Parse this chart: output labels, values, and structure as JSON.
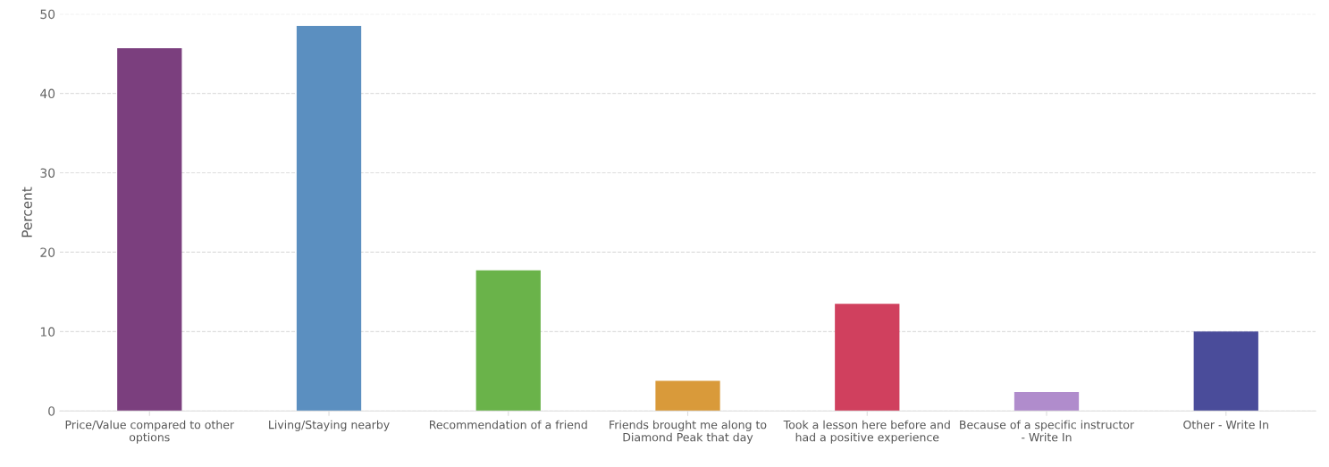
{
  "chart_data": {
    "type": "bar",
    "ylabel": "Percent",
    "categories": [
      "Price/Value compared to other\noptions",
      "Living/Staying nearby",
      "Recommendation of a friend",
      "Friends brought me along to\nDiamond Peak that day",
      "Took a lesson here before and\nhad a positive experience",
      "Because of a specific instructor\n- Write In",
      "Other - Write In"
    ],
    "values": [
      45.7,
      48.5,
      17.7,
      3.8,
      13.5,
      2.4,
      10.0
    ],
    "colors": [
      "#7b3f7e",
      "#5b8fc0",
      "#6ab34a",
      "#d99a3a",
      "#d0405e",
      "#b08ccc",
      "#4a4c9a"
    ],
    "ylim": [
      0,
      50
    ],
    "yticks": [
      0,
      10,
      20,
      30,
      40,
      50
    ],
    "grid": "y"
  }
}
